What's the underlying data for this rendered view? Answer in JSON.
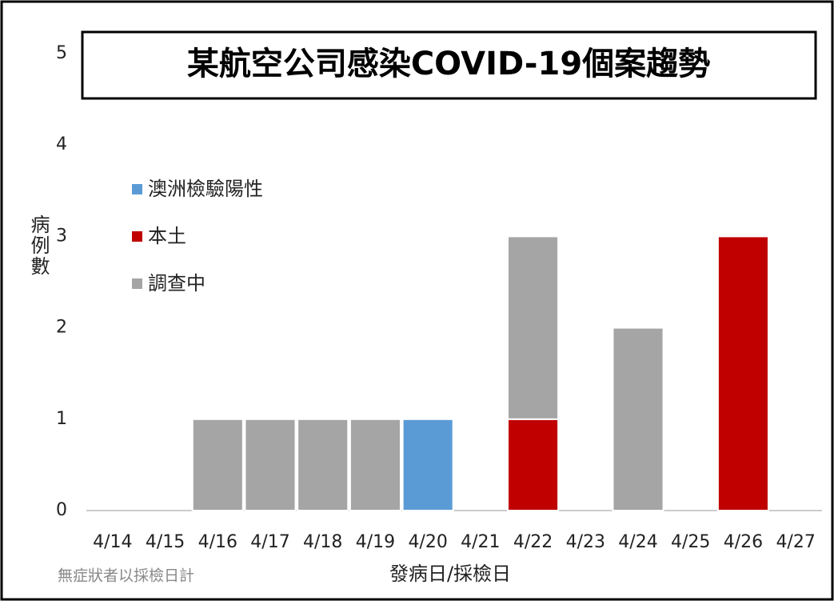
{
  "chart_data": {
    "type": "bar",
    "stacked": true,
    "title": "某航空公司感染COVID-19個案趨勢",
    "y_label": "病例數",
    "x_label": "發病日/採檢日",
    "note": "無症狀者以採檢日計",
    "categories": [
      "4/14",
      "4/15",
      "4/16",
      "4/17",
      "4/18",
      "4/19",
      "4/20",
      "4/21",
      "4/22",
      "4/23",
      "4/24",
      "4/25",
      "4/26",
      "4/27"
    ],
    "series": [
      {
        "name": "澳洲檢驗陽性",
        "color": "#5b9bd5",
        "values": [
          0,
          0,
          0,
          0,
          0,
          0,
          1,
          0,
          0,
          0,
          0,
          0,
          0,
          0
        ]
      },
      {
        "name": "本土",
        "color": "#c00000",
        "values": [
          0,
          0,
          0,
          0,
          0,
          0,
          0,
          0,
          1,
          0,
          0,
          0,
          3,
          0
        ]
      },
      {
        "name": "調查中",
        "color": "#a5a5a5",
        "values": [
          0,
          0,
          1,
          1,
          1,
          1,
          0,
          0,
          2,
          0,
          2,
          0,
          0,
          0
        ]
      }
    ],
    "ylim": [
      0,
      5
    ],
    "yticks": [
      0,
      1,
      2,
      3,
      4,
      5
    ],
    "grid": false,
    "legend": "upper left"
  }
}
